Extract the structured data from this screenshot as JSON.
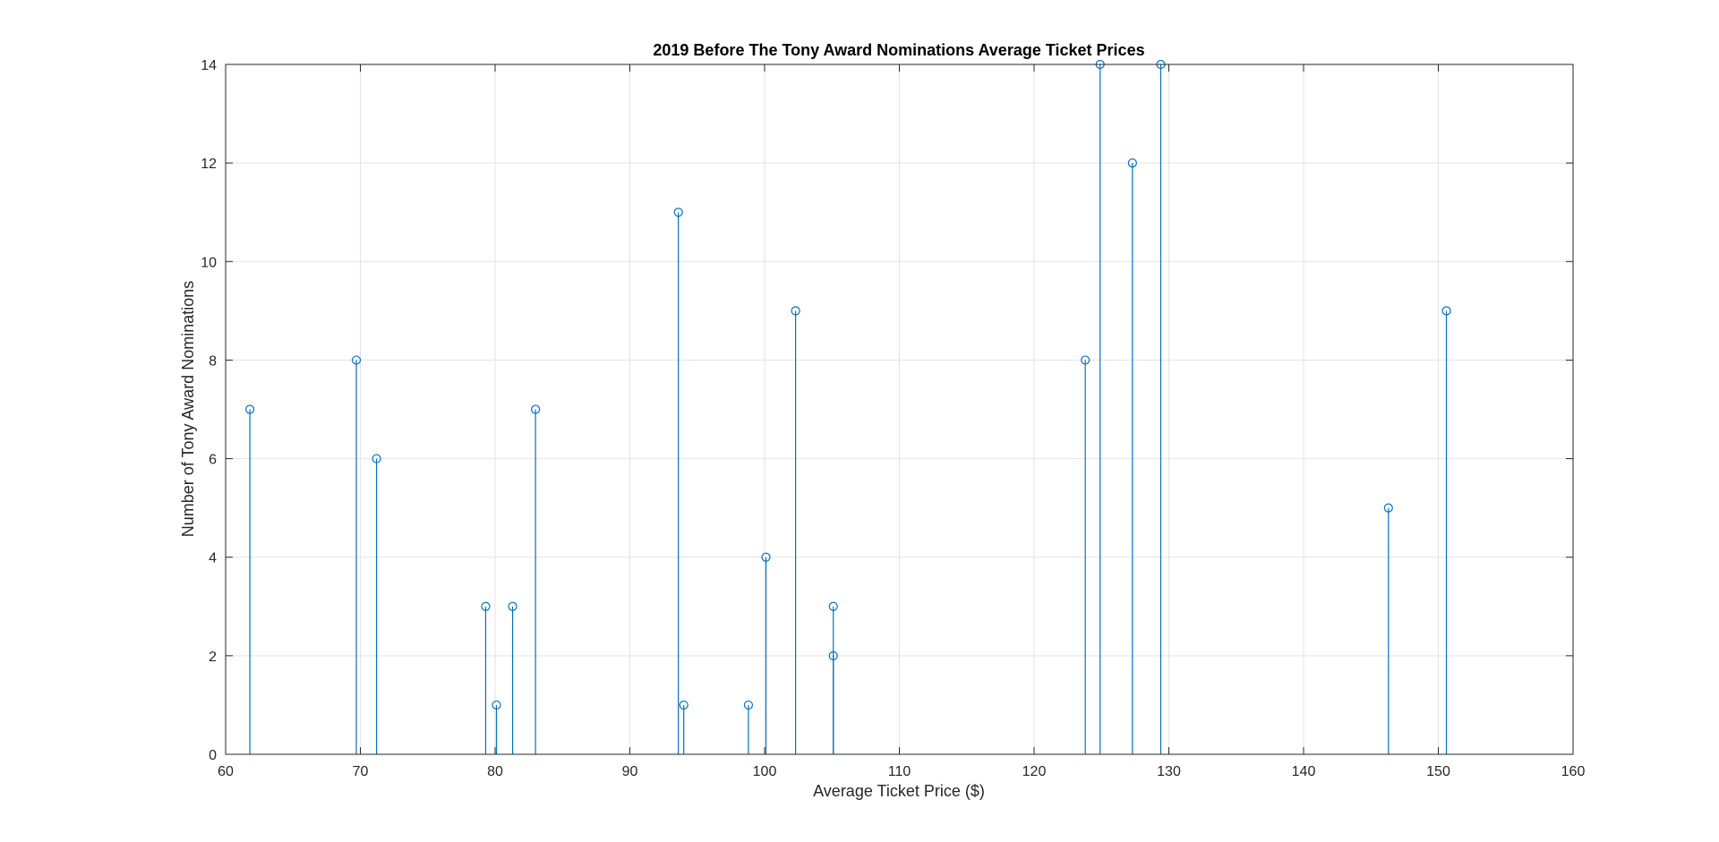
{
  "chart_data": {
    "type": "stem",
    "title": "2019 Before The Tony Award Nominations Average Ticket Prices",
    "xlabel": "Average Ticket Price ($)",
    "ylabel": "Number of Tony Award Nominations",
    "xlim": [
      60,
      160
    ],
    "ylim": [
      0,
      14
    ],
    "xticks": [
      "60",
      "70",
      "80",
      "90",
      "100",
      "110",
      "120",
      "130",
      "140",
      "150",
      "160"
    ],
    "yticks": [
      "0",
      "2",
      "4",
      "6",
      "8",
      "10",
      "12",
      "14"
    ],
    "grid": true,
    "legend": "none",
    "series_color": "#0072BD",
    "points": [
      {
        "x": 61.8,
        "y": 7
      },
      {
        "x": 69.7,
        "y": 8
      },
      {
        "x": 71.2,
        "y": 6
      },
      {
        "x": 79.3,
        "y": 3
      },
      {
        "x": 80.1,
        "y": 1
      },
      {
        "x": 81.3,
        "y": 3
      },
      {
        "x": 83.0,
        "y": 7
      },
      {
        "x": 93.6,
        "y": 11
      },
      {
        "x": 94.0,
        "y": 1
      },
      {
        "x": 98.8,
        "y": 1
      },
      {
        "x": 100.1,
        "y": 4
      },
      {
        "x": 102.3,
        "y": 9
      },
      {
        "x": 105.1,
        "y": 3
      },
      {
        "x": 105.1,
        "y": 2
      },
      {
        "x": 123.8,
        "y": 8
      },
      {
        "x": 124.9,
        "y": 14
      },
      {
        "x": 127.3,
        "y": 12
      },
      {
        "x": 129.4,
        "y": 14
      },
      {
        "x": 146.3,
        "y": 5
      },
      {
        "x": 150.6,
        "y": 9
      }
    ]
  }
}
